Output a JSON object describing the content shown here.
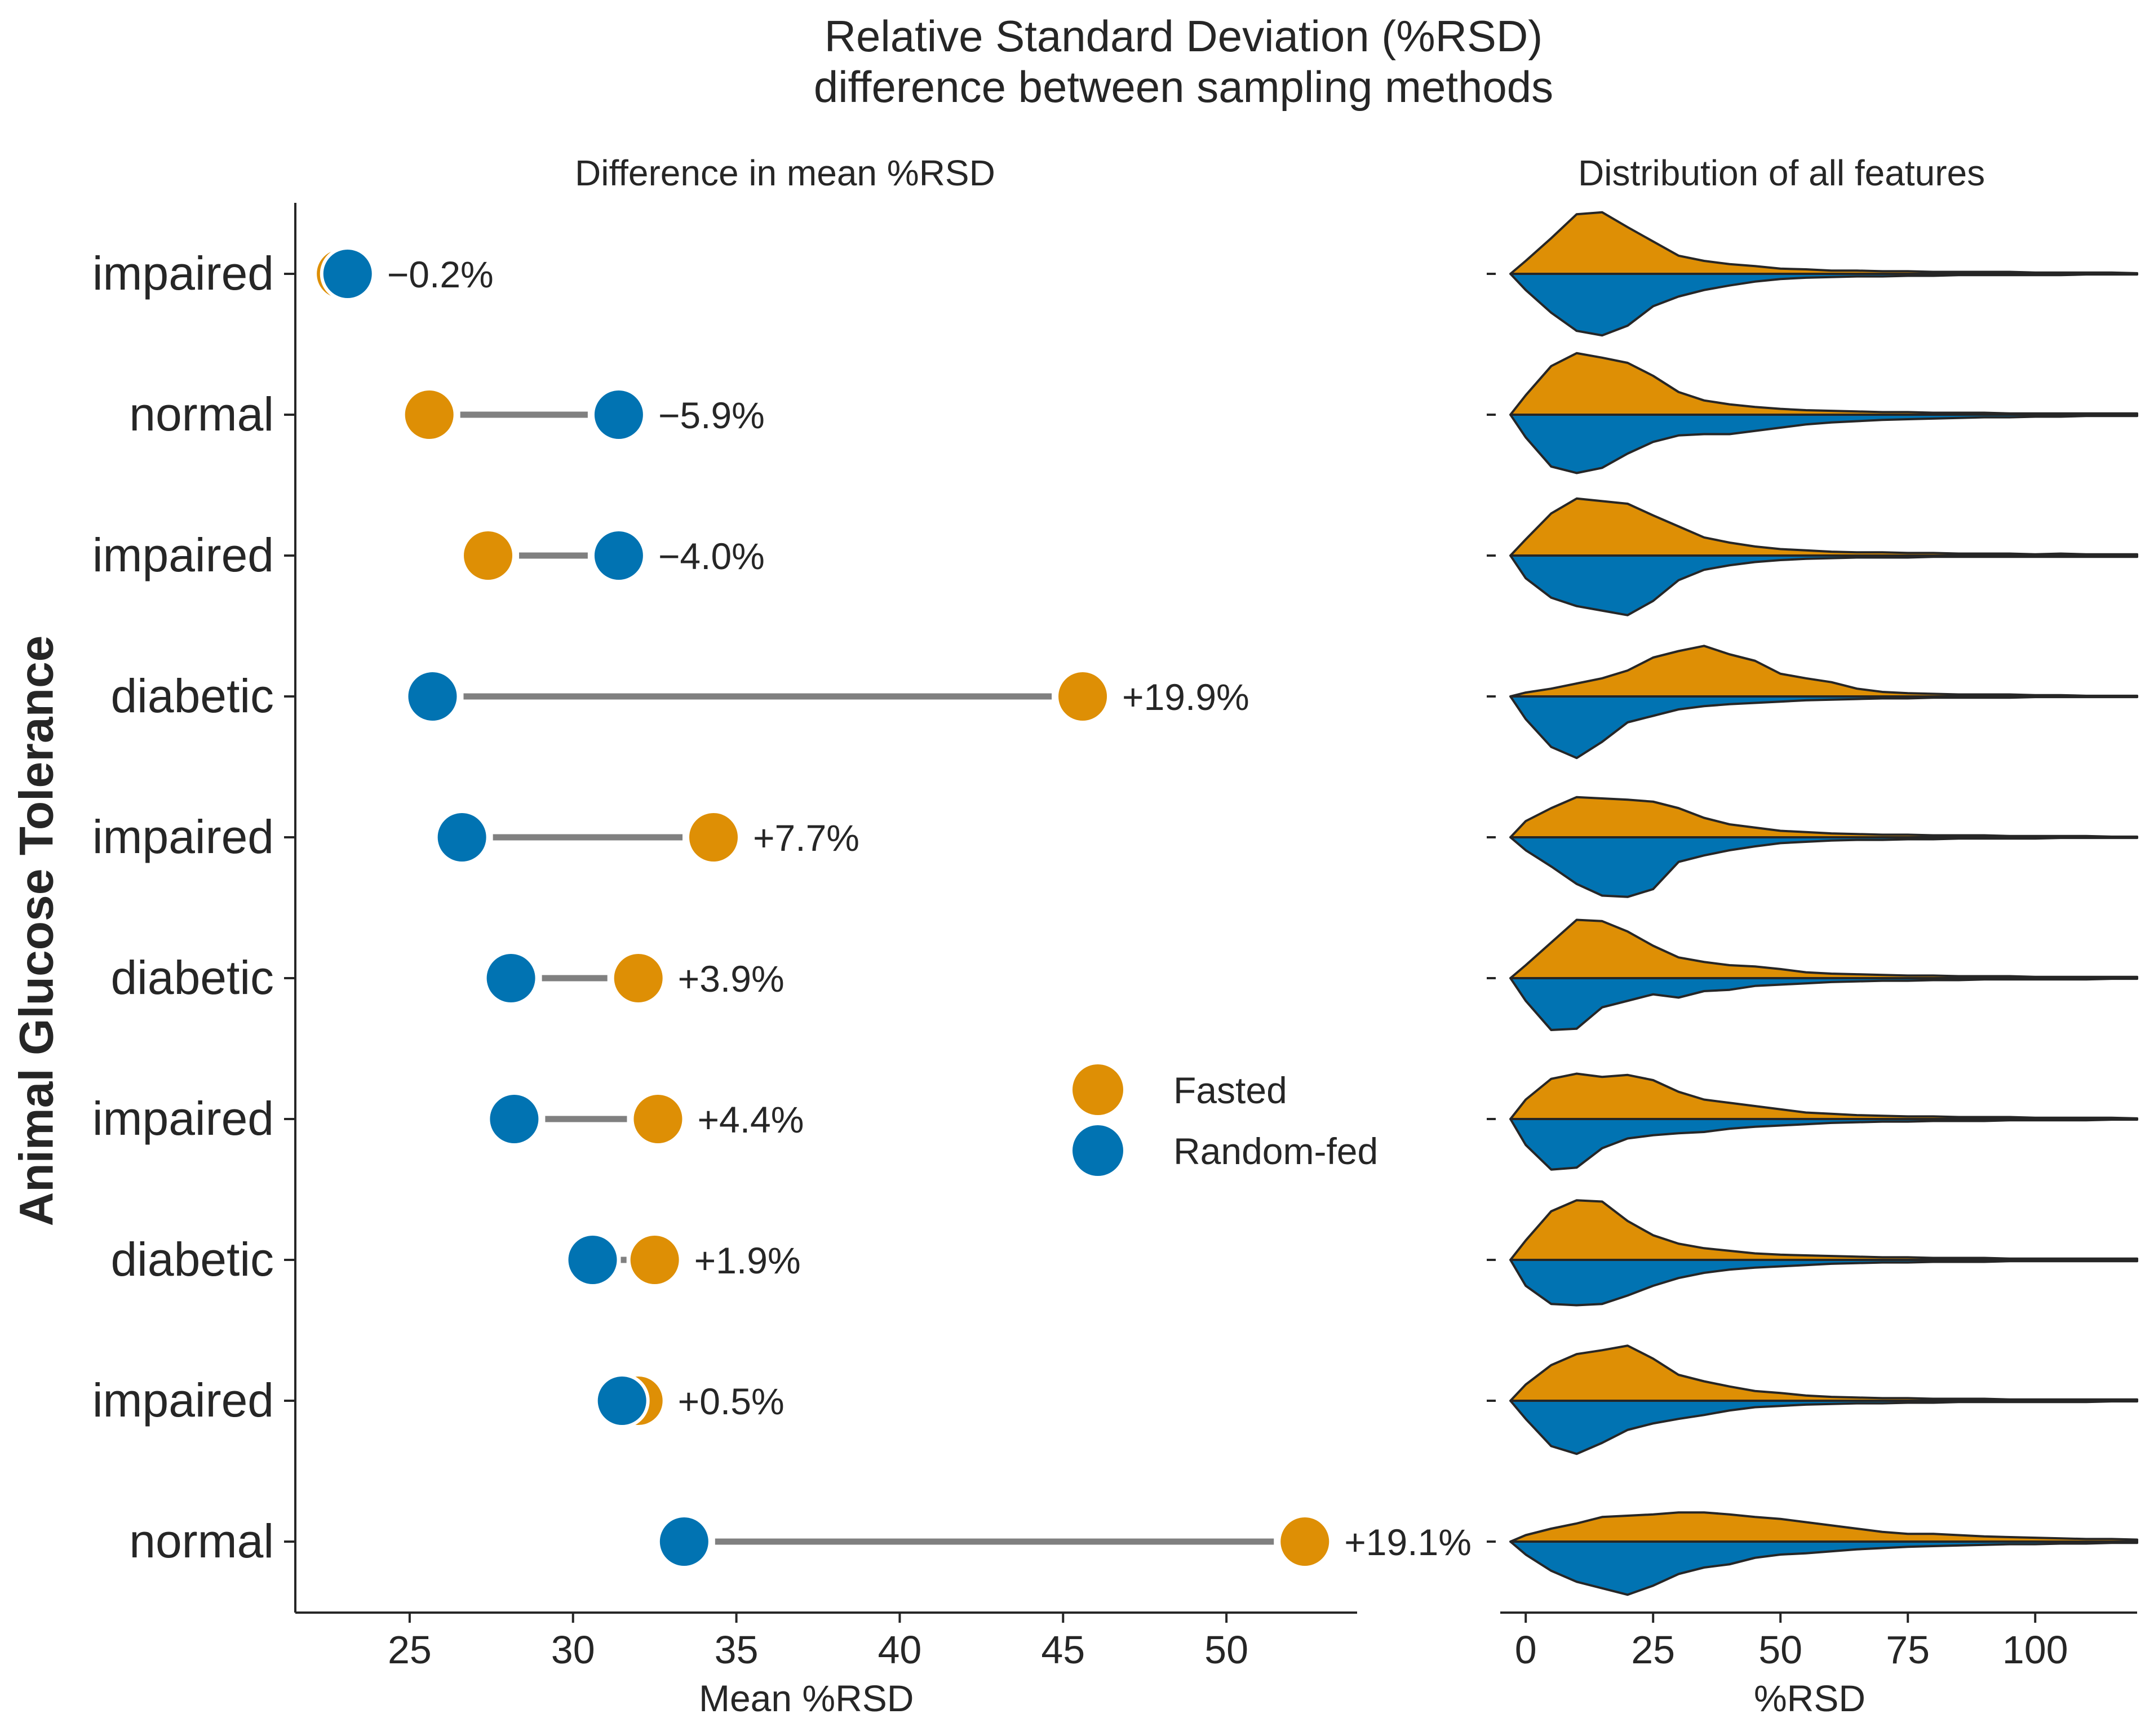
{
  "title_lines": [
    "Relative Standard Deviation (%RSD)",
    "difference between sampling methods"
  ],
  "colors": {
    "fasted": "#de8f05",
    "random_fed": "#0173b2",
    "connector": "#808080",
    "axis": "#262626"
  },
  "chart_data": [
    {
      "type": "dumbbell",
      "title": "Difference in mean %RSD",
      "xlabel": "Mean %RSD",
      "ylabel": "Animal Glucose Tolerance",
      "xlim": [
        21.5,
        54
      ],
      "xticks": [
        25,
        30,
        35,
        40,
        45,
        50
      ],
      "categories": [
        "impaired",
        "normal",
        "impaired",
        "diabetic",
        "impaired",
        "diabetic",
        "impaired",
        "diabetic",
        "impaired",
        "normal"
      ],
      "series": [
        {
          "name": "Fasted",
          "values": [
            22.9,
            25.6,
            27.4,
            45.6,
            34.3,
            32.0,
            32.6,
            32.5,
            32.0,
            52.4
          ]
        },
        {
          "name": "Random-fed",
          "values": [
            23.1,
            31.4,
            31.4,
            25.7,
            26.6,
            28.1,
            28.2,
            30.6,
            31.5,
            33.4
          ]
        }
      ],
      "annotations": [
        "−0.2%",
        "−5.9%",
        "−4.0%",
        "+19.9%",
        "+7.7%",
        "+3.9%",
        "+4.4%",
        "+1.9%",
        "+0.5%",
        "+19.1%"
      ],
      "legend": {
        "position": "center-right",
        "entries": [
          "Fasted",
          "Random-fed"
        ]
      },
      "grid": false
    },
    {
      "type": "split-violin",
      "title": "Distribution of all features",
      "xlabel": "%RSD",
      "xlim": [
        -5,
        120
      ],
      "xticks": [
        0,
        25,
        50,
        75,
        100
      ],
      "x": [
        -3,
        0,
        5,
        10,
        15,
        20,
        25,
        30,
        35,
        40,
        45,
        50,
        55,
        60,
        65,
        70,
        75,
        80,
        85,
        90,
        95,
        100,
        105,
        110,
        115,
        120
      ],
      "series_names": [
        "Fasted",
        "Random-fed"
      ],
      "rows": [
        {
          "fasted": [
            0,
            0.2,
            0.55,
            0.92,
            0.95,
            0.72,
            0.5,
            0.28,
            0.2,
            0.15,
            0.12,
            0.08,
            0.07,
            0.05,
            0.05,
            0.04,
            0.04,
            0.03,
            0.03,
            0.03,
            0.03,
            0.02,
            0.02,
            0.02,
            0.02,
            0.01
          ],
          "random": [
            0,
            0.25,
            0.6,
            0.88,
            0.95,
            0.8,
            0.5,
            0.35,
            0.25,
            0.18,
            0.12,
            0.08,
            0.06,
            0.05,
            0.04,
            0.04,
            0.03,
            0.03,
            0.02,
            0.02,
            0.02,
            0.02,
            0.02,
            0.01,
            0.01,
            0.01
          ]
        },
        {
          "fasted": [
            0,
            0.3,
            0.75,
            0.95,
            0.88,
            0.8,
            0.6,
            0.35,
            0.22,
            0.16,
            0.12,
            0.09,
            0.07,
            0.06,
            0.05,
            0.04,
            0.04,
            0.03,
            0.03,
            0.03,
            0.02,
            0.02,
            0.02,
            0.02,
            0.02,
            0.02
          ],
          "random": [
            0,
            0.35,
            0.8,
            0.9,
            0.82,
            0.6,
            0.42,
            0.32,
            0.3,
            0.3,
            0.25,
            0.2,
            0.15,
            0.12,
            0.1,
            0.08,
            0.07,
            0.06,
            0.05,
            0.04,
            0.04,
            0.03,
            0.03,
            0.02,
            0.02,
            0.02
          ]
        },
        {
          "fasted": [
            0,
            0.25,
            0.65,
            0.88,
            0.84,
            0.8,
            0.62,
            0.45,
            0.28,
            0.2,
            0.14,
            0.1,
            0.08,
            0.06,
            0.05,
            0.05,
            0.04,
            0.04,
            0.03,
            0.03,
            0.03,
            0.02,
            0.03,
            0.02,
            0.02,
            0.02
          ],
          "random": [
            0,
            0.35,
            0.65,
            0.78,
            0.85,
            0.92,
            0.7,
            0.38,
            0.22,
            0.15,
            0.1,
            0.07,
            0.05,
            0.04,
            0.03,
            0.03,
            0.03,
            0.02,
            0.02,
            0.02,
            0.02,
            0.02,
            0.02,
            0.02,
            0.02,
            0.02
          ]
        },
        {
          "fasted": [
            0,
            0.06,
            0.12,
            0.2,
            0.28,
            0.4,
            0.6,
            0.7,
            0.78,
            0.65,
            0.55,
            0.35,
            0.28,
            0.22,
            0.12,
            0.07,
            0.05,
            0.04,
            0.03,
            0.03,
            0.03,
            0.02,
            0.02,
            0.01,
            0.01,
            0.01
          ],
          "random": [
            0,
            0.35,
            0.78,
            0.95,
            0.7,
            0.4,
            0.3,
            0.2,
            0.15,
            0.12,
            0.1,
            0.08,
            0.06,
            0.05,
            0.04,
            0.03,
            0.03,
            0.02,
            0.02,
            0.02,
            0.02,
            0.01,
            0.01,
            0.01,
            0.01,
            0.01
          ]
        },
        {
          "fasted": [
            0,
            0.25,
            0.45,
            0.62,
            0.6,
            0.58,
            0.55,
            0.45,
            0.3,
            0.2,
            0.15,
            0.1,
            0.08,
            0.06,
            0.05,
            0.04,
            0.04,
            0.03,
            0.03,
            0.03,
            0.02,
            0.02,
            0.02,
            0.02,
            0.01,
            0.01
          ],
          "random": [
            0,
            0.2,
            0.45,
            0.72,
            0.9,
            0.92,
            0.8,
            0.38,
            0.28,
            0.2,
            0.14,
            0.09,
            0.07,
            0.05,
            0.04,
            0.04,
            0.03,
            0.03,
            0.02,
            0.02,
            0.02,
            0.02,
            0.01,
            0.01,
            0.01,
            0.01
          ]
        },
        {
          "fasted": [
            0,
            0.2,
            0.55,
            0.9,
            0.88,
            0.72,
            0.5,
            0.32,
            0.25,
            0.2,
            0.18,
            0.14,
            0.09,
            0.07,
            0.06,
            0.05,
            0.04,
            0.04,
            0.03,
            0.03,
            0.03,
            0.02,
            0.02,
            0.02,
            0.02,
            0.02
          ],
          "random": [
            0,
            0.35,
            0.8,
            0.78,
            0.45,
            0.35,
            0.25,
            0.3,
            0.2,
            0.18,
            0.12,
            0.1,
            0.08,
            0.06,
            0.05,
            0.04,
            0.04,
            0.03,
            0.03,
            0.02,
            0.02,
            0.02,
            0.02,
            0.02,
            0.01,
            0.01
          ]
        },
        {
          "fasted": [
            0,
            0.3,
            0.62,
            0.7,
            0.65,
            0.68,
            0.6,
            0.42,
            0.3,
            0.25,
            0.2,
            0.15,
            0.1,
            0.08,
            0.06,
            0.05,
            0.04,
            0.04,
            0.03,
            0.03,
            0.03,
            0.02,
            0.02,
            0.02,
            0.02,
            0.01
          ],
          "random": [
            0,
            0.4,
            0.78,
            0.75,
            0.45,
            0.3,
            0.25,
            0.22,
            0.2,
            0.15,
            0.12,
            0.1,
            0.08,
            0.06,
            0.05,
            0.04,
            0.04,
            0.03,
            0.03,
            0.03,
            0.02,
            0.02,
            0.02,
            0.02,
            0.01,
            0.01
          ]
        },
        {
          "fasted": [
            0,
            0.3,
            0.75,
            0.92,
            0.9,
            0.6,
            0.38,
            0.25,
            0.18,
            0.14,
            0.1,
            0.08,
            0.07,
            0.06,
            0.05,
            0.04,
            0.04,
            0.03,
            0.03,
            0.03,
            0.02,
            0.02,
            0.02,
            0.02,
            0.02,
            0.02
          ],
          "random": [
            0,
            0.4,
            0.68,
            0.7,
            0.68,
            0.55,
            0.4,
            0.28,
            0.2,
            0.15,
            0.12,
            0.1,
            0.08,
            0.06,
            0.05,
            0.04,
            0.04,
            0.03,
            0.03,
            0.03,
            0.02,
            0.02,
            0.02,
            0.02,
            0.02,
            0.02
          ]
        },
        {
          "fasted": [
            0,
            0.25,
            0.55,
            0.72,
            0.78,
            0.85,
            0.65,
            0.4,
            0.3,
            0.22,
            0.15,
            0.12,
            0.08,
            0.06,
            0.05,
            0.04,
            0.04,
            0.03,
            0.03,
            0.03,
            0.02,
            0.02,
            0.02,
            0.02,
            0.02,
            0.02
          ],
          "random": [
            0,
            0.28,
            0.7,
            0.82,
            0.65,
            0.45,
            0.35,
            0.28,
            0.22,
            0.15,
            0.1,
            0.08,
            0.06,
            0.05,
            0.04,
            0.04,
            0.03,
            0.03,
            0.02,
            0.02,
            0.02,
            0.02,
            0.02,
            0.02,
            0.01,
            0.01
          ]
        },
        {
          "fasted": [
            0,
            0.1,
            0.2,
            0.28,
            0.38,
            0.4,
            0.42,
            0.45,
            0.45,
            0.42,
            0.38,
            0.35,
            0.3,
            0.25,
            0.2,
            0.15,
            0.12,
            0.12,
            0.1,
            0.08,
            0.07,
            0.06,
            0.05,
            0.04,
            0.04,
            0.03
          ],
          "random": [
            0,
            0.2,
            0.45,
            0.62,
            0.72,
            0.82,
            0.68,
            0.5,
            0.4,
            0.35,
            0.25,
            0.2,
            0.18,
            0.15,
            0.12,
            0.1,
            0.08,
            0.07,
            0.06,
            0.05,
            0.04,
            0.04,
            0.03,
            0.03,
            0.02,
            0.02
          ]
        }
      ],
      "grid": false
    }
  ]
}
